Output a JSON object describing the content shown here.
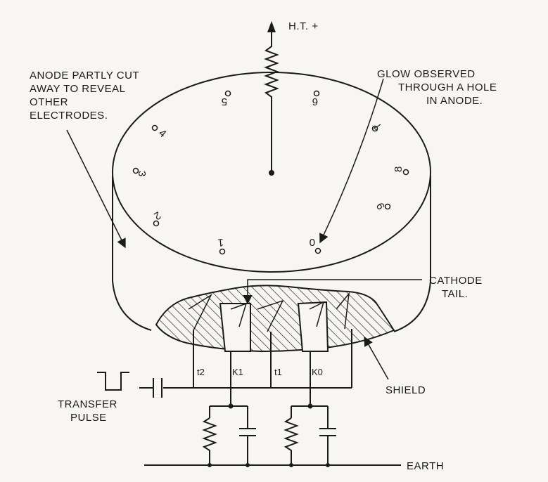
{
  "labels": {
    "ht": "H.T. +",
    "anode_note": [
      "ANODE PARTLY CUT",
      "AWAY TO REVEAL",
      "OTHER",
      "ELECTRODES."
    ],
    "glow_note": [
      "GLOW OBSERVED",
      "THROUGH A HOLE",
      "IN ANODE."
    ],
    "cathode_tail": [
      "CATHODE",
      "TAIL."
    ],
    "shield": "SHIELD",
    "transfer_pulse": [
      "TRANSFER",
      "PULSE"
    ],
    "earth": "EARTH"
  },
  "electrodes": {
    "t2": "t2",
    "k1": "K1",
    "t1": "t1",
    "k0": "K0"
  },
  "cathode_digits": [
    "0",
    "1",
    "2",
    "3",
    "4",
    "5",
    "6",
    "7",
    "8",
    "9"
  ]
}
